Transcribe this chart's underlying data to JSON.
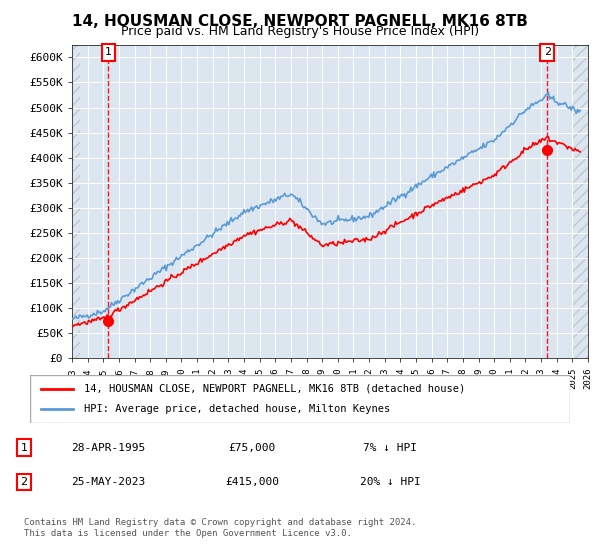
{
  "title1": "14, HOUSMAN CLOSE, NEWPORT PAGNELL, MK16 8TB",
  "title2": "Price paid vs. HM Land Registry's House Price Index (HPI)",
  "ylabel": "",
  "xlabel": "",
  "ylim": [
    0,
    625000
  ],
  "yticks": [
    0,
    50000,
    100000,
    150000,
    200000,
    250000,
    300000,
    350000,
    400000,
    450000,
    500000,
    550000,
    600000
  ],
  "ytick_labels": [
    "£0",
    "£50K",
    "£100K",
    "£150K",
    "£200K",
    "£250K",
    "£300K",
    "£350K",
    "£400K",
    "£450K",
    "£500K",
    "£550K",
    "£600K"
  ],
  "hpi_color": "#5b9bd5",
  "price_color": "#ff0000",
  "bg_plot": "#dce6f1",
  "bg_hatch": "#c0c0c0",
  "marker1_year": 1995.33,
  "marker1_price": 75000,
  "marker2_year": 2023.4,
  "marker2_price": 415000,
  "legend_line1": "14, HOUSMAN CLOSE, NEWPORT PAGNELL, MK16 8TB (detached house)",
  "legend_line2": "HPI: Average price, detached house, Milton Keynes",
  "annotation1": [
    "1",
    "28-APR-1995",
    "£75,000",
    "7% ↓ HPI"
  ],
  "annotation2": [
    "2",
    "25-MAY-2023",
    "£415,000",
    "20% ↓ HPI"
  ],
  "footnote": "Contains HM Land Registry data © Crown copyright and database right 2024.\nThis data is licensed under the Open Government Licence v3.0.",
  "xmin": 1993,
  "xmax": 2026
}
